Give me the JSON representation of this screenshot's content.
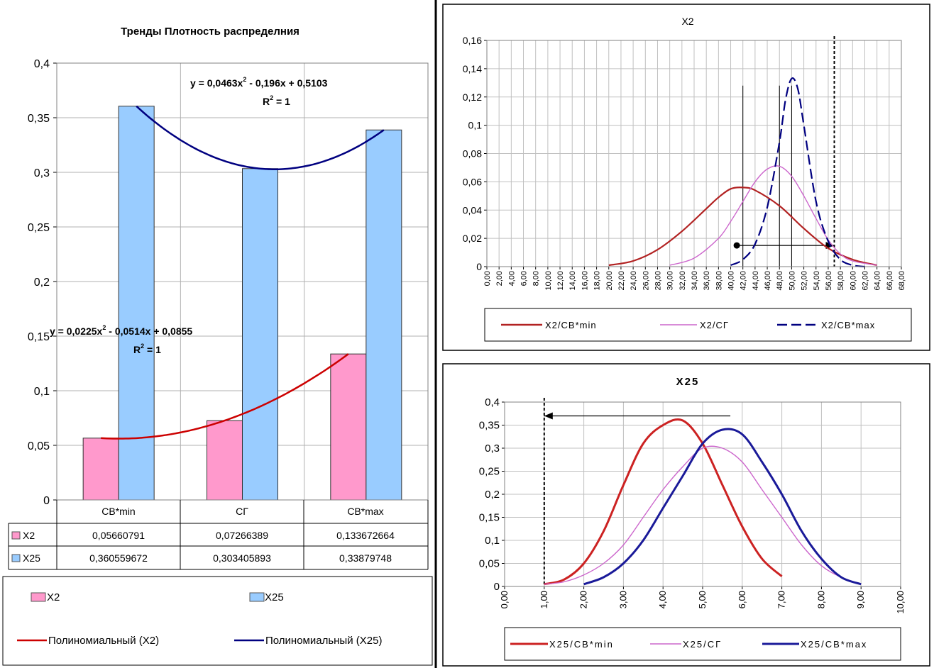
{
  "chart_data": [
    {
      "type": "bar",
      "title": "Тренды Плотность распределния",
      "categories": [
        "СВ*min",
        "СГ",
        "СВ*max"
      ],
      "ylim": [
        0,
        0.4
      ],
      "y_ticks": [
        "0",
        "0,05",
        "0,1",
        "0,15",
        "0,2",
        "0,25",
        "0,3",
        "0,35",
        "0,4"
      ],
      "series": [
        {
          "name": "X2",
          "color": "#ff99cc",
          "values": [
            0.05660791,
            0.07266389,
            0.133672664
          ],
          "labels": [
            "0,05660791",
            "0,07266389",
            "0,133672664"
          ]
        },
        {
          "name": "X25",
          "color": "#99ccff",
          "values": [
            0.360559672,
            0.303405893,
            0.33879748
          ],
          "labels": [
            "0,360559672",
            "0,303405893",
            "0,33879748"
          ]
        }
      ],
      "trendlines": [
        {
          "name": "Полиномиальный (X2)",
          "color": "#cc0000",
          "equation": "y = 0,0225x",
          "equation_tail": " - 0,0514x + 0,0855",
          "r2": "R",
          "r2_tail": " = 1",
          "sup": "2"
        },
        {
          "name": "Полиномиальный (X25)",
          "color": "#000080",
          "equation": "y = 0,0463x",
          "equation_tail": " - 0,196x + 0,5103",
          "r2": "R",
          "r2_tail": " = 1",
          "sup": "2"
        }
      ],
      "grid": true,
      "legend": "bottom"
    },
    {
      "type": "line",
      "title": "X2",
      "xlim": [
        0,
        68
      ],
      "ylim": [
        0,
        0.16
      ],
      "x_ticks": [
        "0,00",
        "2,00",
        "4,00",
        "6,00",
        "8,00",
        "10,00",
        "12,00",
        "14,00",
        "16,00",
        "18,00",
        "20,00",
        "22,00",
        "24,00",
        "26,00",
        "28,00",
        "30,00",
        "32,00",
        "34,00",
        "36,00",
        "38,00",
        "40,00",
        "42,00",
        "44,00",
        "46,00",
        "48,00",
        "50,00",
        "52,00",
        "54,00",
        "56,00",
        "58,00",
        "60,00",
        "62,00",
        "64,00",
        "66,00",
        "68,00"
      ],
      "y_ticks": [
        "0",
        "0,02",
        "0,04",
        "0,06",
        "0,08",
        "0,1",
        "0,12",
        "0,14",
        "0,16"
      ],
      "series": [
        {
          "name": "X2/CB*min",
          "color": "#b22222",
          "style": "solid",
          "x": [
            20,
            24,
            28,
            32,
            36,
            38,
            40,
            42,
            44,
            48,
            52,
            56,
            60,
            64
          ],
          "y": [
            0.001,
            0.004,
            0.012,
            0.025,
            0.041,
            0.049,
            0.055,
            0.056,
            0.054,
            0.043,
            0.027,
            0.013,
            0.005,
            0.001
          ]
        },
        {
          "name": "X2/CГ",
          "color": "#cc66cc",
          "style": "solid",
          "x": [
            30,
            34,
            38,
            40,
            42,
            44,
            46,
            48,
            50,
            52,
            54,
            56,
            58,
            60,
            64
          ],
          "y": [
            0.001,
            0.006,
            0.02,
            0.032,
            0.046,
            0.06,
            0.069,
            0.071,
            0.064,
            0.05,
            0.034,
            0.019,
            0.009,
            0.004,
            0.001
          ]
        },
        {
          "name": "X2/CB*max",
          "color": "#000080",
          "style": "dashed",
          "x": [
            40,
            42,
            44,
            46,
            48,
            49,
            50,
            51,
            52,
            54,
            56,
            58,
            60,
            62
          ],
          "y": [
            0.001,
            0.005,
            0.016,
            0.042,
            0.088,
            0.118,
            0.133,
            0.126,
            0.1,
            0.046,
            0.018,
            0.005,
            0.001,
            0.0
          ]
        }
      ],
      "annotations": {
        "dot_x": 41,
        "arrow_from": 41,
        "arrow_to": 57,
        "arrow_y": 0.015,
        "vline_dashed": 57,
        "vlines": [
          42,
          48,
          50
        ]
      },
      "grid": true,
      "legend": "bottom"
    },
    {
      "type": "line",
      "title": "X25",
      "xlim": [
        0,
        10
      ],
      "ylim": [
        0,
        0.4
      ],
      "x_ticks": [
        "0,00",
        "1,00",
        "2,00",
        "3,00",
        "4,00",
        "5,00",
        "6,00",
        "7,00",
        "8,00",
        "9,00",
        "10,00"
      ],
      "y_ticks": [
        "0",
        "0,05",
        "0,1",
        "0,15",
        "0,2",
        "0,25",
        "0,3",
        "0,35",
        "0,4"
      ],
      "series": [
        {
          "name": "X25/CB*min",
          "color": "#cc2222",
          "style": "solid",
          "x": [
            1.0,
            1.5,
            2.0,
            2.5,
            3.0,
            3.5,
            4.0,
            4.5,
            5.0,
            5.5,
            6.0,
            6.5,
            7.0
          ],
          "y": [
            0.005,
            0.015,
            0.05,
            0.12,
            0.22,
            0.31,
            0.35,
            0.36,
            0.31,
            0.22,
            0.13,
            0.06,
            0.022
          ]
        },
        {
          "name": "X25/CГ",
          "color": "#cc66cc",
          "style": "solid",
          "x": [
            1.0,
            1.5,
            2.0,
            2.5,
            3.0,
            3.5,
            4.0,
            4.5,
            5.0,
            5.5,
            6.0,
            6.5,
            7.0,
            7.5,
            8.0,
            8.5,
            9.0
          ],
          "y": [
            0.005,
            0.01,
            0.025,
            0.05,
            0.09,
            0.15,
            0.21,
            0.26,
            0.3,
            0.3,
            0.27,
            0.21,
            0.15,
            0.09,
            0.045,
            0.02,
            0.005
          ]
        },
        {
          "name": "X25/CB*max",
          "color": "#1a1a99",
          "style": "solid",
          "x": [
            2.0,
            2.5,
            3.0,
            3.5,
            4.0,
            4.5,
            5.0,
            5.5,
            6.0,
            6.5,
            7.0,
            7.5,
            8.0,
            8.5,
            9.0
          ],
          "y": [
            0.005,
            0.02,
            0.05,
            0.1,
            0.17,
            0.24,
            0.31,
            0.34,
            0.33,
            0.27,
            0.2,
            0.12,
            0.06,
            0.02,
            0.005
          ]
        }
      ],
      "annotations": {
        "arrow_from": 5.7,
        "arrow_to": 1.0,
        "arrow_y": 0.37,
        "vline_dashed": 1.0
      },
      "grid": true,
      "legend": "bottom"
    }
  ]
}
